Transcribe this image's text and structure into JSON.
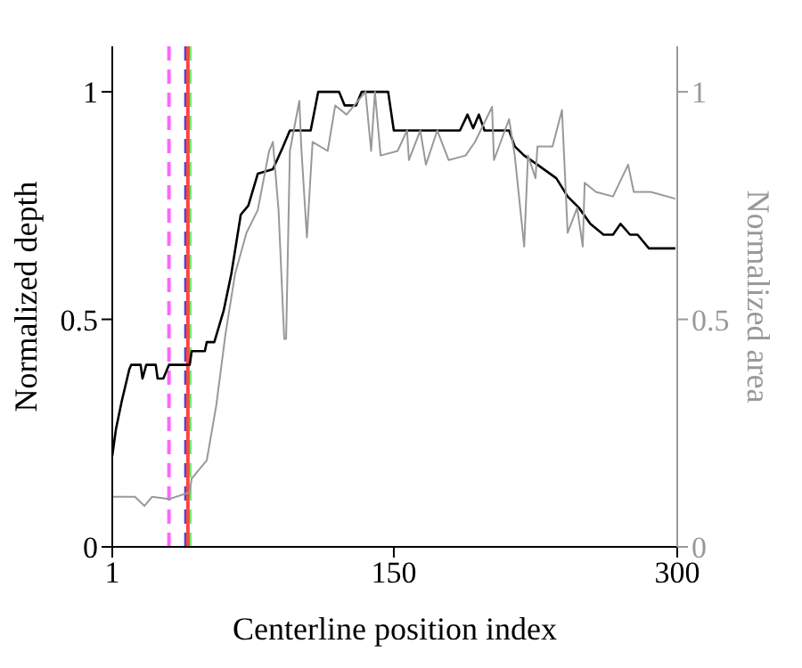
{
  "chart_data": {
    "type": "line",
    "xlabel": "Centerline position index",
    "ylabel": "Normalized depth",
    "y2label": "Normalized area",
    "xlim": [
      1,
      300
    ],
    "xticks": [
      1,
      150,
      300
    ],
    "ylim": [
      0,
      1.1
    ],
    "yticks": [
      0,
      0.5,
      1
    ],
    "y2lim": [
      0,
      1.1
    ],
    "y2ticks": [
      0,
      0.5,
      1
    ],
    "legend": false,
    "marker": "none",
    "line_style": "solid",
    "series": [
      {
        "color": "#000000",
        "x": [
          1,
          3,
          6,
          10,
          11,
          16,
          17,
          19,
          24,
          25,
          28,
          31,
          42,
          43,
          50,
          51,
          55,
          60,
          64,
          69,
          73,
          78,
          86,
          91,
          95,
          106,
          110,
          121,
          124,
          130,
          133,
          147,
          150,
          185,
          189,
          192,
          195,
          198,
          211,
          214,
          219,
          226,
          236,
          242,
          248,
          254,
          261,
          266,
          270,
          275,
          279,
          285,
          299
        ],
        "values": [
          0.2,
          0.26,
          0.32,
          0.39,
          0.4,
          0.4,
          0.37,
          0.4,
          0.4,
          0.37,
          0.37,
          0.4,
          0.4,
          0.43,
          0.43,
          0.45,
          0.45,
          0.52,
          0.6,
          0.73,
          0.75,
          0.82,
          0.83,
          0.876,
          0.915,
          0.915,
          1.0,
          1.0,
          0.97,
          0.97,
          1.0,
          1.0,
          0.915,
          0.915,
          0.95,
          0.92,
          0.95,
          0.915,
          0.915,
          0.88,
          0.86,
          0.84,
          0.81,
          0.77,
          0.745,
          0.71,
          0.686,
          0.686,
          0.71,
          0.686,
          0.686,
          0.656,
          0.656
        ]
      },
      {
        "color": "#999999",
        "axis": "y2",
        "x": [
          1,
          13,
          18,
          22,
          31,
          42,
          43,
          51,
          56,
          61,
          66,
          72,
          78,
          84,
          86,
          89,
          92,
          93,
          95,
          100,
          101,
          104,
          107,
          115,
          119,
          125,
          135,
          138,
          140,
          143,
          152,
          157,
          158,
          164,
          167,
          173,
          179,
          188,
          193,
          202,
          203,
          211,
          214,
          219,
          221,
          225,
          226,
          234,
          239,
          242,
          247,
          250,
          251,
          257,
          266,
          274,
          277,
          286,
          299
        ],
        "values": [
          0.11,
          0.11,
          0.09,
          0.11,
          0.105,
          0.12,
          0.15,
          0.19,
          0.31,
          0.47,
          0.6,
          0.69,
          0.74,
          0.87,
          0.89,
          0.74,
          0.457,
          0.457,
          0.87,
          0.98,
          0.88,
          0.68,
          0.89,
          0.87,
          0.97,
          0.95,
          1.0,
          0.87,
          1.0,
          0.86,
          0.87,
          0.915,
          0.85,
          0.915,
          0.84,
          0.915,
          0.85,
          0.86,
          0.89,
          0.967,
          0.85,
          0.94,
          0.86,
          0.66,
          0.86,
          0.81,
          0.88,
          0.88,
          0.96,
          0.69,
          0.745,
          0.66,
          0.8,
          0.78,
          0.77,
          0.84,
          0.78,
          0.78,
          0.765
        ]
      }
    ],
    "ref_lines": [
      {
        "axis": "x",
        "value": 31,
        "color": "#ff66ff",
        "line_style": "dashed"
      },
      {
        "axis": "x",
        "value": 40,
        "color": "#4444cc",
        "line_style": "dashed"
      },
      {
        "axis": "x",
        "value": 42,
        "color": "#66ee66",
        "line_style": "dashed"
      },
      {
        "axis": "x",
        "value": 41,
        "color": "#ff4444",
        "line_style": "solid"
      }
    ]
  }
}
